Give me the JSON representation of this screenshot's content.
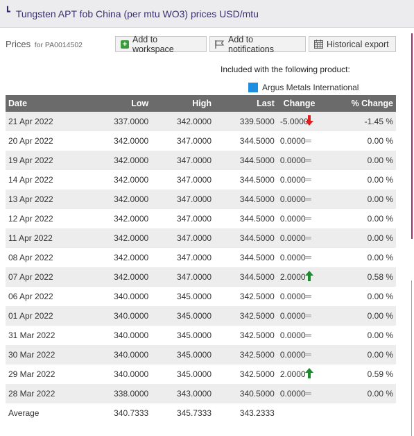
{
  "title": {
    "text": "Tungsten APT fob China (per mtu WO3) prices USD/mtu",
    "icon": "corner-bracket-icon"
  },
  "toolbar": {
    "prices_label": "Prices",
    "prices_for": "for PA0014502",
    "add_workspace_label": "Add to workspace",
    "add_notifications_label": "Add to notifications",
    "historical_export_label": "Historical export"
  },
  "included": {
    "text": "Included with the following product:",
    "product_name": "Argus Metals International",
    "product_color": "#1e8fe0"
  },
  "table": {
    "headers": {
      "date": "Date",
      "low": "Low",
      "high": "High",
      "last": "Last",
      "change": "Change",
      "pct_change": "% Change"
    },
    "rows": [
      {
        "date": "21 Apr 2022",
        "low": "337.0000",
        "high": "342.0000",
        "last": "339.5000",
        "change": "-5.0000",
        "direction": "down",
        "pct": "-1.45 %"
      },
      {
        "date": "20 Apr 2022",
        "low": "342.0000",
        "high": "347.0000",
        "last": "344.5000",
        "change": "0.0000",
        "direction": "flat",
        "pct": "0.00 %"
      },
      {
        "date": "19 Apr 2022",
        "low": "342.0000",
        "high": "347.0000",
        "last": "344.5000",
        "change": "0.0000",
        "direction": "flat",
        "pct": "0.00 %"
      },
      {
        "date": "14 Apr 2022",
        "low": "342.0000",
        "high": "347.0000",
        "last": "344.5000",
        "change": "0.0000",
        "direction": "flat",
        "pct": "0.00 %"
      },
      {
        "date": "13 Apr 2022",
        "low": "342.0000",
        "high": "347.0000",
        "last": "344.5000",
        "change": "0.0000",
        "direction": "flat",
        "pct": "0.00 %"
      },
      {
        "date": "12 Apr 2022",
        "low": "342.0000",
        "high": "347.0000",
        "last": "344.5000",
        "change": "0.0000",
        "direction": "flat",
        "pct": "0.00 %"
      },
      {
        "date": "11 Apr 2022",
        "low": "342.0000",
        "high": "347.0000",
        "last": "344.5000",
        "change": "0.0000",
        "direction": "flat",
        "pct": "0.00 %"
      },
      {
        "date": "08 Apr 2022",
        "low": "342.0000",
        "high": "347.0000",
        "last": "344.5000",
        "change": "0.0000",
        "direction": "flat",
        "pct": "0.00 %"
      },
      {
        "date": "07 Apr 2022",
        "low": "342.0000",
        "high": "347.0000",
        "last": "344.5000",
        "change": "2.0000",
        "direction": "up",
        "pct": "0.58 %"
      },
      {
        "date": "06 Apr 2022",
        "low": "340.0000",
        "high": "345.0000",
        "last": "342.5000",
        "change": "0.0000",
        "direction": "flat",
        "pct": "0.00 %"
      },
      {
        "date": "01 Apr 2022",
        "low": "340.0000",
        "high": "345.0000",
        "last": "342.5000",
        "change": "0.0000",
        "direction": "flat",
        "pct": "0.00 %"
      },
      {
        "date": "31 Mar 2022",
        "low": "340.0000",
        "high": "345.0000",
        "last": "342.5000",
        "change": "0.0000",
        "direction": "flat",
        "pct": "0.00 %"
      },
      {
        "date": "30 Mar 2022",
        "low": "340.0000",
        "high": "345.0000",
        "last": "342.5000",
        "change": "0.0000",
        "direction": "flat",
        "pct": "0.00 %"
      },
      {
        "date": "29 Mar 2022",
        "low": "340.0000",
        "high": "345.0000",
        "last": "342.5000",
        "change": "2.0000",
        "direction": "up",
        "pct": "0.59 %"
      },
      {
        "date": "28 Mar 2022",
        "low": "338.0000",
        "high": "343.0000",
        "last": "340.5000",
        "change": "0.0000",
        "direction": "flat",
        "pct": "0.00 %"
      }
    ],
    "average": {
      "label": "Average",
      "low": "340.7333",
      "high": "345.7333",
      "last": "343.2333"
    }
  },
  "colors": {
    "negative": "#e02020",
    "positive": "#1d8a2e",
    "header_bg": "#6b6b6b",
    "row_alt_bg": "#ededed",
    "accent_scrollbar": "#a0306a"
  }
}
